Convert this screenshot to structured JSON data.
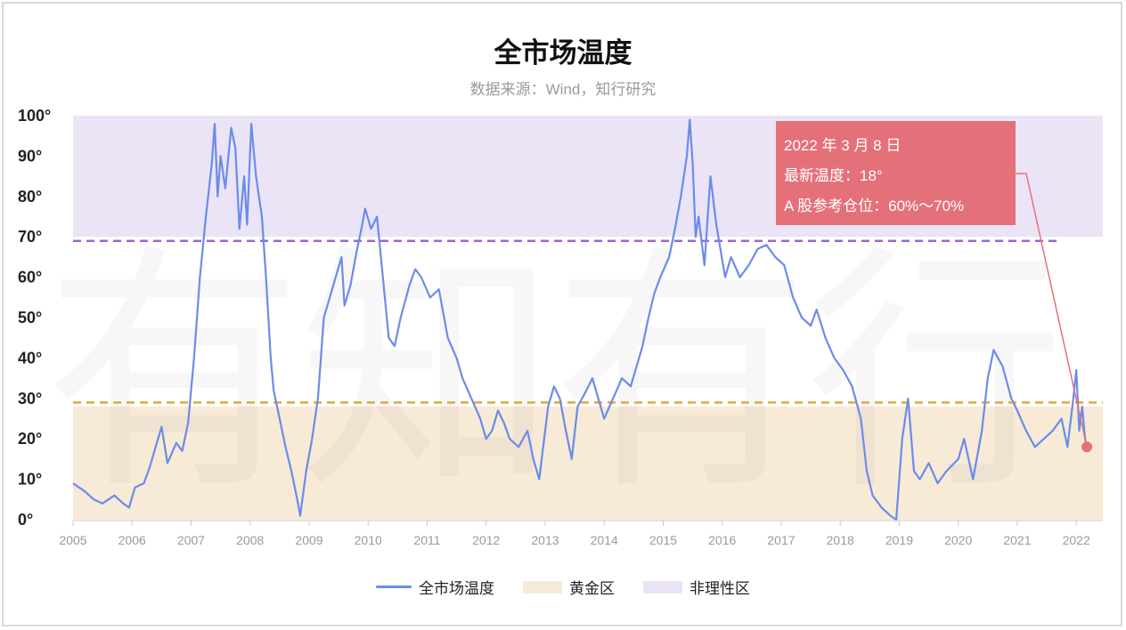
{
  "title": "全市场温度",
  "subtitle": "数据来源：Wind，知行研究",
  "watermark": "有知有行",
  "tooltip": {
    "date": "2022 年 3 月 8 日",
    "latest": "最新温度：18°",
    "position": "A 股参考仓位：60%～70%"
  },
  "legend": {
    "series": "全市场温度",
    "gold_zone": "黄金区",
    "irrational_zone": "非理性区"
  },
  "colors": {
    "line": "#6b8ce8",
    "gold_zone": "#f7ead7",
    "irrational_zone": "#ebe4f6",
    "gold_threshold": "#e2a83a",
    "irrational_threshold": "#9b66d6",
    "marker": "#e4717a"
  },
  "chart_data": {
    "type": "line",
    "title": "全市场温度",
    "x_ticks": [
      "2005",
      "2006",
      "2007",
      "2008",
      "2009",
      "2010",
      "2011",
      "2012",
      "2013",
      "2014",
      "2015",
      "2016",
      "2017",
      "2018",
      "2019",
      "2020",
      "2021",
      "2022"
    ],
    "y_ticks": [
      "0°",
      "10°",
      "20°",
      "30°",
      "40°",
      "50°",
      "60°",
      "70°",
      "80°",
      "90°",
      "100°"
    ],
    "xlim": [
      2005.0,
      2022.45
    ],
    "ylim": [
      0,
      100
    ],
    "zones": [
      {
        "name": "黄金区",
        "from": 0,
        "to": 28
      },
      {
        "name": "非理性区",
        "from": 70,
        "to": 100
      }
    ],
    "threshold_lines": [
      29,
      69
    ],
    "latest_point": {
      "x": 2022.18,
      "y": 18
    },
    "series": [
      {
        "name": "全市场温度",
        "points": [
          [
            2005.0,
            9
          ],
          [
            2005.1,
            8
          ],
          [
            2005.2,
            7
          ],
          [
            2005.35,
            5
          ],
          [
            2005.5,
            4
          ],
          [
            2005.7,
            6
          ],
          [
            2005.85,
            4
          ],
          [
            2005.95,
            3
          ],
          [
            2006.05,
            8
          ],
          [
            2006.2,
            9
          ],
          [
            2006.3,
            13
          ],
          [
            2006.4,
            18
          ],
          [
            2006.5,
            23
          ],
          [
            2006.6,
            14
          ],
          [
            2006.75,
            19
          ],
          [
            2006.85,
            17
          ],
          [
            2006.95,
            24
          ],
          [
            2007.05,
            40
          ],
          [
            2007.15,
            60
          ],
          [
            2007.25,
            75
          ],
          [
            2007.35,
            88
          ],
          [
            2007.4,
            98
          ],
          [
            2007.45,
            80
          ],
          [
            2007.5,
            90
          ],
          [
            2007.58,
            82
          ],
          [
            2007.68,
            97
          ],
          [
            2007.75,
            92
          ],
          [
            2007.82,
            72
          ],
          [
            2007.9,
            85
          ],
          [
            2007.95,
            73
          ],
          [
            2008.02,
            98
          ],
          [
            2008.1,
            85
          ],
          [
            2008.2,
            75
          ],
          [
            2008.27,
            60
          ],
          [
            2008.35,
            40
          ],
          [
            2008.4,
            32
          ],
          [
            2008.5,
            25
          ],
          [
            2008.6,
            18
          ],
          [
            2008.7,
            12
          ],
          [
            2008.8,
            5
          ],
          [
            2008.85,
            1
          ],
          [
            2008.95,
            12
          ],
          [
            2009.05,
            20
          ],
          [
            2009.15,
            30
          ],
          [
            2009.25,
            50
          ],
          [
            2009.35,
            55
          ],
          [
            2009.45,
            60
          ],
          [
            2009.55,
            65
          ],
          [
            2009.6,
            53
          ],
          [
            2009.7,
            58
          ],
          [
            2009.8,
            66
          ],
          [
            2009.9,
            73
          ],
          [
            2009.95,
            77
          ],
          [
            2010.05,
            72
          ],
          [
            2010.15,
            75
          ],
          [
            2010.25,
            60
          ],
          [
            2010.35,
            45
          ],
          [
            2010.45,
            43
          ],
          [
            2010.55,
            50
          ],
          [
            2010.7,
            58
          ],
          [
            2010.8,
            62
          ],
          [
            2010.9,
            60
          ],
          [
            2011.05,
            55
          ],
          [
            2011.2,
            57
          ],
          [
            2011.35,
            45
          ],
          [
            2011.5,
            40
          ],
          [
            2011.6,
            35
          ],
          [
            2011.75,
            30
          ],
          [
            2011.9,
            25
          ],
          [
            2012.0,
            20
          ],
          [
            2012.1,
            22
          ],
          [
            2012.2,
            27
          ],
          [
            2012.3,
            24
          ],
          [
            2012.4,
            20
          ],
          [
            2012.55,
            18
          ],
          [
            2012.7,
            22
          ],
          [
            2012.8,
            15
          ],
          [
            2012.9,
            10
          ],
          [
            2013.05,
            28
          ],
          [
            2013.15,
            33
          ],
          [
            2013.25,
            30
          ],
          [
            2013.35,
            22
          ],
          [
            2013.45,
            15
          ],
          [
            2013.55,
            28
          ],
          [
            2013.7,
            32
          ],
          [
            2013.8,
            35
          ],
          [
            2013.9,
            30
          ],
          [
            2014.0,
            25
          ],
          [
            2014.15,
            30
          ],
          [
            2014.3,
            35
          ],
          [
            2014.45,
            33
          ],
          [
            2014.55,
            38
          ],
          [
            2014.65,
            43
          ],
          [
            2014.75,
            50
          ],
          [
            2014.85,
            56
          ],
          [
            2014.95,
            60
          ],
          [
            2015.1,
            65
          ],
          [
            2015.2,
            72
          ],
          [
            2015.3,
            80
          ],
          [
            2015.4,
            90
          ],
          [
            2015.45,
            99
          ],
          [
            2015.5,
            88
          ],
          [
            2015.55,
            70
          ],
          [
            2015.6,
            75
          ],
          [
            2015.7,
            63
          ],
          [
            2015.8,
            85
          ],
          [
            2015.9,
            73
          ],
          [
            2016.05,
            60
          ],
          [
            2016.15,
            65
          ],
          [
            2016.3,
            60
          ],
          [
            2016.45,
            63
          ],
          [
            2016.6,
            67
          ],
          [
            2016.75,
            68
          ],
          [
            2016.9,
            65
          ],
          [
            2017.05,
            63
          ],
          [
            2017.2,
            55
          ],
          [
            2017.35,
            50
          ],
          [
            2017.5,
            48
          ],
          [
            2017.6,
            52
          ],
          [
            2017.75,
            45
          ],
          [
            2017.9,
            40
          ],
          [
            2018.05,
            37
          ],
          [
            2018.2,
            33
          ],
          [
            2018.35,
            25
          ],
          [
            2018.45,
            12
          ],
          [
            2018.55,
            6
          ],
          [
            2018.7,
            3
          ],
          [
            2018.85,
            1
          ],
          [
            2018.95,
            0
          ],
          [
            2019.05,
            20
          ],
          [
            2019.15,
            30
          ],
          [
            2019.25,
            12
          ],
          [
            2019.35,
            10
          ],
          [
            2019.5,
            14
          ],
          [
            2019.65,
            9
          ],
          [
            2019.8,
            12
          ],
          [
            2020.0,
            15
          ],
          [
            2020.1,
            20
          ],
          [
            2020.25,
            10
          ],
          [
            2020.4,
            22
          ],
          [
            2020.5,
            35
          ],
          [
            2020.6,
            42
          ],
          [
            2020.75,
            38
          ],
          [
            2020.9,
            30
          ],
          [
            2021.0,
            27
          ],
          [
            2021.15,
            22
          ],
          [
            2021.3,
            18
          ],
          [
            2021.45,
            20
          ],
          [
            2021.6,
            22
          ],
          [
            2021.75,
            25
          ],
          [
            2021.85,
            18
          ],
          [
            2021.95,
            30
          ],
          [
            2022.0,
            37
          ],
          [
            2022.05,
            22
          ],
          [
            2022.1,
            28
          ],
          [
            2022.15,
            20
          ],
          [
            2022.18,
            18
          ]
        ]
      }
    ]
  }
}
